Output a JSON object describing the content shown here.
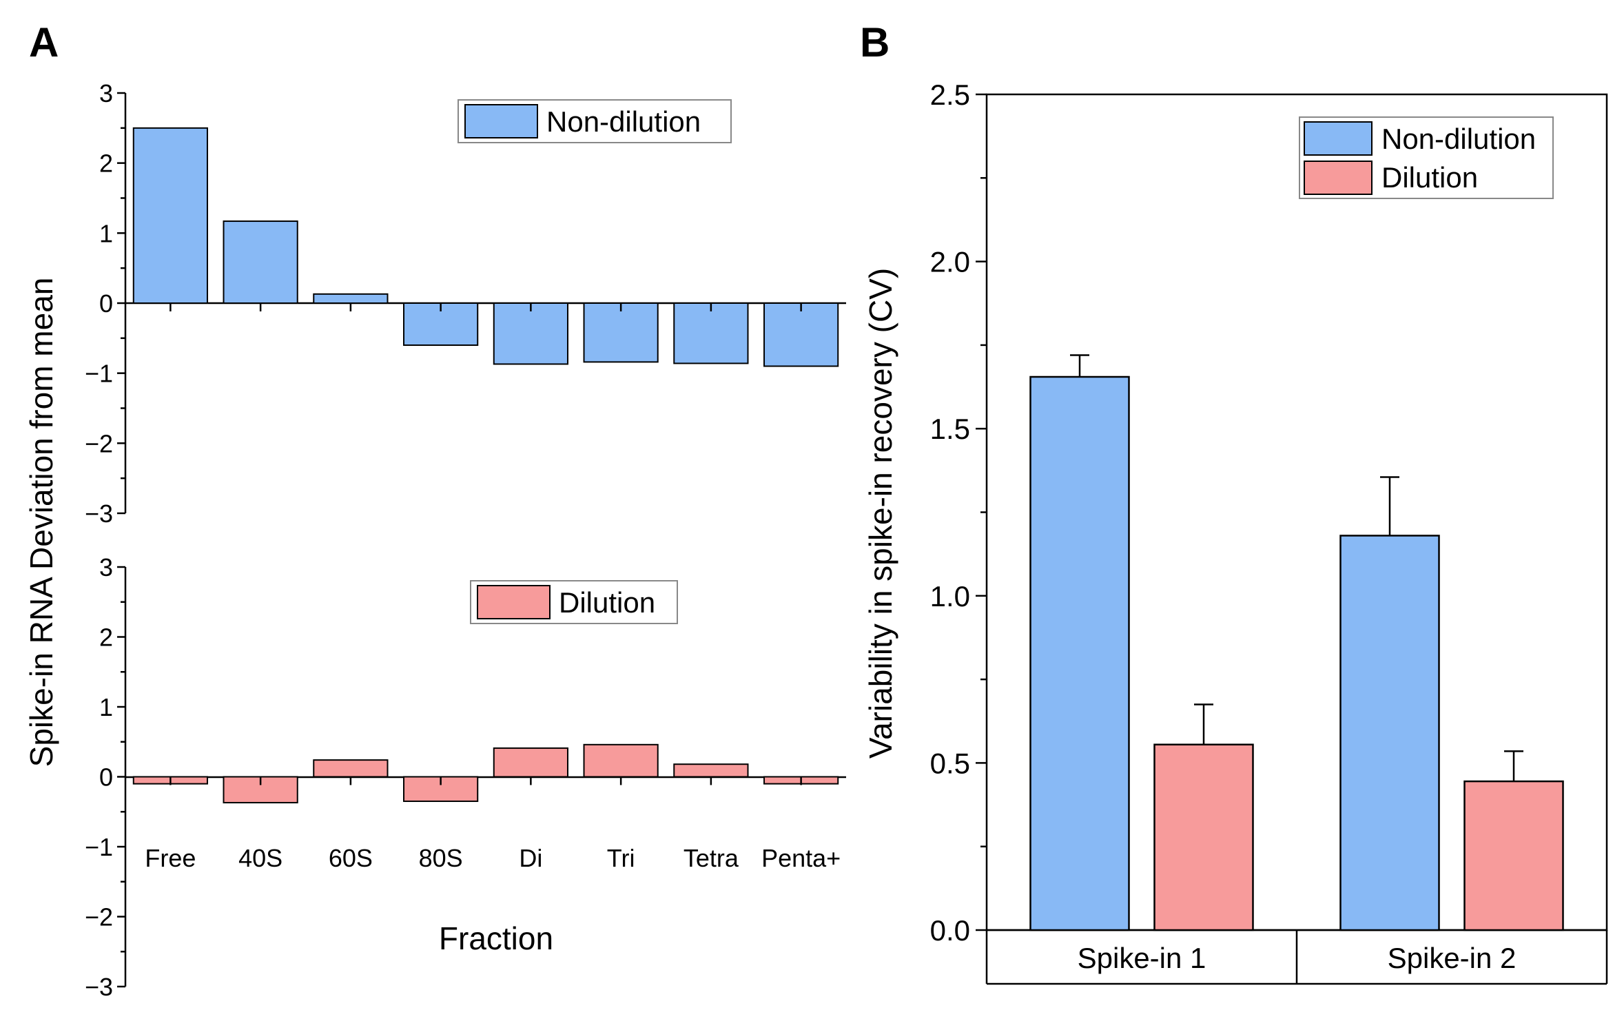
{
  "panel_labels": {
    "a": "A",
    "b": "B"
  },
  "colors": {
    "non_dilution": "#88b9f5",
    "dilution": "#f79b9b",
    "stroke": "#000000"
  },
  "chart_data": [
    {
      "id": "A-top",
      "type": "bar",
      "categories": [
        "Free",
        "40S",
        "60S",
        "80S",
        "Di",
        "Tri",
        "Tetra",
        "Penta+"
      ],
      "series": [
        {
          "name": "Non-dilution",
          "values": [
            2.5,
            1.17,
            0.13,
            -0.6,
            -0.87,
            -0.84,
            -0.86,
            -0.9
          ]
        }
      ],
      "ylabel": "Spike-in RNA Deviation from mean",
      "ylim": [
        -3,
        3
      ],
      "yticks": [
        3,
        2,
        1,
        0,
        -1,
        -2,
        -3
      ],
      "legend": "top-right",
      "grid": false
    },
    {
      "id": "A-bottom",
      "type": "bar",
      "categories": [
        "Free",
        "40S",
        "60S",
        "80S",
        "Di",
        "Tri",
        "Tetra",
        "Penta+"
      ],
      "series": [
        {
          "name": "Dilution",
          "values": [
            -0.1,
            -0.37,
            0.24,
            -0.35,
            0.41,
            0.46,
            0.18,
            -0.1
          ]
        }
      ],
      "xlabel": "Fraction",
      "ylim": [
        -3,
        3
      ],
      "yticks": [
        3,
        2,
        1,
        0,
        -1,
        -2,
        -3
      ],
      "legend": "top-right",
      "grid": false
    },
    {
      "id": "B",
      "type": "bar",
      "categories": [
        "Spike-in 1",
        "Spike-in 2"
      ],
      "series": [
        {
          "name": "Non-dilution",
          "values": [
            1.655,
            1.18
          ],
          "errors": [
            0.065,
            0.175
          ]
        },
        {
          "name": "Dilution",
          "values": [
            0.555,
            0.445
          ],
          "errors": [
            0.12,
            0.09
          ]
        }
      ],
      "ylabel": "Variability in spike-in recovery (CV)",
      "ylim": [
        0,
        2.5
      ],
      "yticks": [
        "0.0",
        "0.5",
        "1.0",
        "1.5",
        "2.0",
        "2.5"
      ],
      "legend": "top-right",
      "grid": false
    }
  ]
}
